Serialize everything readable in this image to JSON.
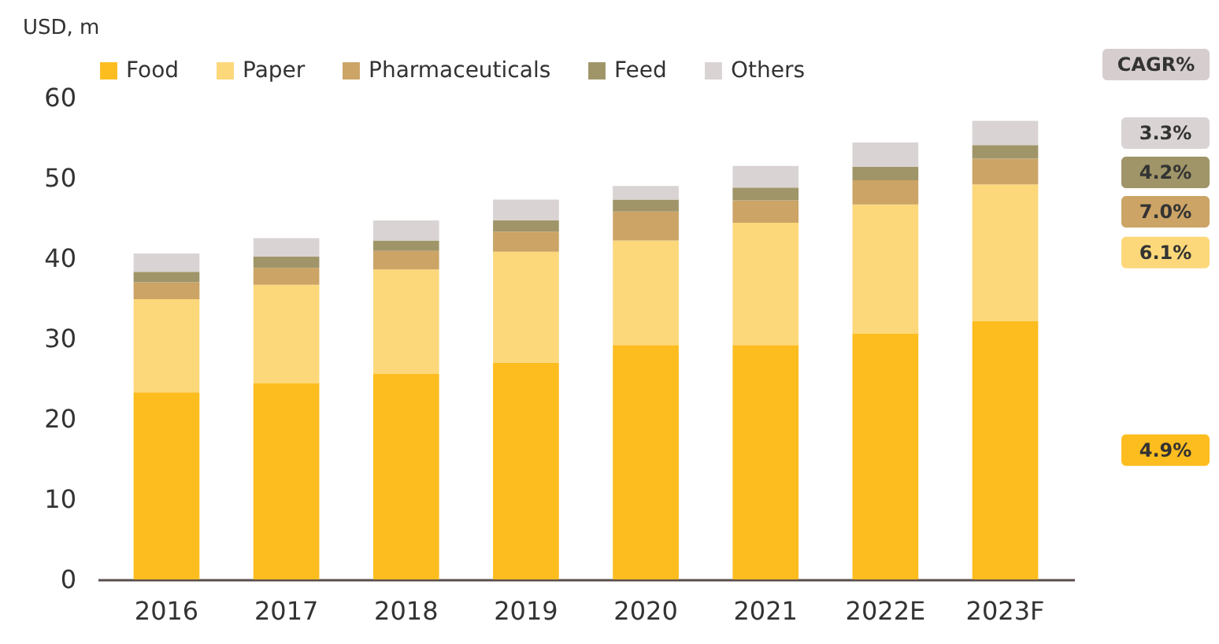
{
  "chart_data": {
    "type": "bar",
    "stacked": true,
    "ylabel": "USD, m",
    "categories": [
      "2016",
      "2017",
      "2018",
      "2019",
      "2020",
      "2021",
      "2022E",
      "2023F"
    ],
    "series": [
      {
        "name": "Food",
        "color": "#fdbd1f",
        "values": [
          23.3,
          24.4,
          25.6,
          27.0,
          29.2,
          29.2,
          30.6,
          32.2
        ]
      },
      {
        "name": "Paper",
        "color": "#fdd87a",
        "values": [
          11.6,
          12.3,
          13.0,
          13.8,
          13.0,
          15.2,
          16.1,
          17.0
        ]
      },
      {
        "name": "Pharmaceuticals",
        "color": "#cca466",
        "values": [
          2.1,
          2.1,
          2.3,
          2.5,
          3.6,
          2.8,
          3.0,
          3.2
        ]
      },
      {
        "name": "Feed",
        "color": "#a09568",
        "values": [
          1.3,
          1.4,
          1.3,
          1.4,
          1.5,
          1.6,
          1.7,
          1.7
        ]
      },
      {
        "name": "Others",
        "color": "#d9d3d3",
        "values": [
          2.3,
          2.3,
          2.5,
          2.6,
          1.7,
          2.7,
          3.0,
          3.0
        ]
      }
    ],
    "ylim": [
      0,
      60
    ],
    "yticks": [
      0,
      10,
      20,
      30,
      40,
      50,
      60
    ],
    "grid": false,
    "legend": "top",
    "annotations": [
      "CAGR%",
      "4.9%",
      "6.1%",
      "7.0%",
      "4.2%",
      "3.3%"
    ]
  }
}
